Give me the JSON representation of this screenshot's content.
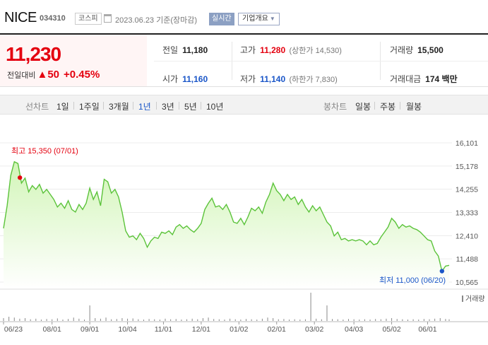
{
  "header": {
    "name": "NICE",
    "code": "034310",
    "market": "코스피",
    "date": "2023.06.23 기준(장마감)",
    "realtime_label": "실시간",
    "info_label": "기업개요"
  },
  "price": {
    "current": "11,230",
    "change_label": "전일대비",
    "change_arrow": "▲",
    "change_amount": "50",
    "change_pct": "+0.45%"
  },
  "stats": {
    "prev_close_label": "전일",
    "prev_close": "11,180",
    "high_label": "고가",
    "high": "11,280",
    "upper_limit": "(상한가 14,530)",
    "volume_label": "거래량",
    "volume": "15,500",
    "open_label": "시가",
    "open": "11,160",
    "low_label": "저가",
    "low": "11,140",
    "lower_limit": "(하한가 7,830)",
    "value_label": "거래대금",
    "value": "174 백만"
  },
  "periods": {
    "label": "선차트",
    "items": [
      "1일",
      "1주일",
      "3개월",
      "1년",
      "3년",
      "5년",
      "10년"
    ],
    "selected": "1년"
  },
  "candles": {
    "label": "봉차트",
    "items": [
      "일봉",
      "주봉",
      "월봉"
    ]
  },
  "colors": {
    "up": "#e4000f",
    "down": "#1a56c8",
    "line": "#5bc33a",
    "fill_top": "#d2f5b8",
    "fill_bottom": "#ffffff"
  },
  "chart_data": {
    "type": "area",
    "y_ticks": [
      "16,101",
      "15,178",
      "14,255",
      "13,333",
      "12,410",
      "11,488",
      "10,565"
    ],
    "ylim": [
      10565,
      16101
    ],
    "x_ticks": [
      "06/23",
      "08/01",
      "09/01",
      "10/04",
      "11/01",
      "12/01",
      "01/02",
      "02/01",
      "03/02",
      "04/03",
      "05/02",
      "06/01"
    ],
    "x_tick_index": [
      0,
      27,
      48,
      69,
      89,
      110,
      131,
      152,
      173,
      195,
      216,
      236
    ],
    "n_points": 249,
    "max_annotation": "최고 15,350 (07/01)",
    "min_annotation": "최저 11,000 (06/20)",
    "max_index": 5,
    "min_index": 244,
    "volume_label": "거래량",
    "series": [
      {
        "values": [
          [
            0,
            12700
          ],
          [
            2,
            13600
          ],
          [
            4,
            14800
          ],
          [
            6,
            15350
          ],
          [
            8,
            15280
          ],
          [
            10,
            14500
          ],
          [
            12,
            14700
          ],
          [
            14,
            14150
          ],
          [
            16,
            14400
          ],
          [
            18,
            14250
          ],
          [
            20,
            14450
          ],
          [
            22,
            14100
          ],
          [
            24,
            14250
          ],
          [
            26,
            14050
          ],
          [
            28,
            13850
          ],
          [
            30,
            13550
          ],
          [
            32,
            13700
          ],
          [
            34,
            13500
          ],
          [
            36,
            13800
          ],
          [
            38,
            13450
          ],
          [
            40,
            13350
          ],
          [
            42,
            13650
          ],
          [
            44,
            13450
          ],
          [
            46,
            13700
          ],
          [
            48,
            14300
          ],
          [
            50,
            13850
          ],
          [
            52,
            14150
          ],
          [
            54,
            13600
          ],
          [
            56,
            14650
          ],
          [
            58,
            14550
          ],
          [
            60,
            14100
          ],
          [
            62,
            14250
          ],
          [
            64,
            13950
          ],
          [
            66,
            13350
          ],
          [
            68,
            12600
          ],
          [
            70,
            12350
          ],
          [
            72,
            12400
          ],
          [
            74,
            12250
          ],
          [
            76,
            12500
          ],
          [
            78,
            12300
          ],
          [
            80,
            11950
          ],
          [
            82,
            12200
          ],
          [
            84,
            12350
          ],
          [
            86,
            12300
          ],
          [
            88,
            12550
          ],
          [
            90,
            12500
          ],
          [
            92,
            12600
          ],
          [
            94,
            12450
          ],
          [
            96,
            12750
          ],
          [
            98,
            12850
          ],
          [
            100,
            12700
          ],
          [
            102,
            12800
          ],
          [
            104,
            12650
          ],
          [
            106,
            12550
          ],
          [
            108,
            12700
          ],
          [
            110,
            12900
          ],
          [
            112,
            13450
          ],
          [
            114,
            13700
          ],
          [
            116,
            13900
          ],
          [
            118,
            13550
          ],
          [
            120,
            13600
          ],
          [
            122,
            13450
          ],
          [
            124,
            13650
          ],
          [
            126,
            13350
          ],
          [
            128,
            12950
          ],
          [
            130,
            12900
          ],
          [
            132,
            13100
          ],
          [
            134,
            12850
          ],
          [
            136,
            13150
          ],
          [
            138,
            13500
          ],
          [
            140,
            13400
          ],
          [
            142,
            13550
          ],
          [
            144,
            13300
          ],
          [
            146,
            13750
          ],
          [
            148,
            14050
          ],
          [
            150,
            14500
          ],
          [
            152,
            14200
          ],
          [
            154,
            14050
          ],
          [
            156,
            13800
          ],
          [
            158,
            14050
          ],
          [
            160,
            13850
          ],
          [
            162,
            13950
          ],
          [
            164,
            13650
          ],
          [
            166,
            13850
          ],
          [
            168,
            13550
          ],
          [
            170,
            13350
          ],
          [
            172,
            13600
          ],
          [
            174,
            13400
          ],
          [
            176,
            13550
          ],
          [
            178,
            13250
          ],
          [
            180,
            12950
          ],
          [
            182,
            12800
          ],
          [
            184,
            12400
          ],
          [
            186,
            12550
          ],
          [
            188,
            12250
          ],
          [
            190,
            12300
          ],
          [
            192,
            12200
          ],
          [
            194,
            12250
          ],
          [
            196,
            12200
          ],
          [
            198,
            12250
          ],
          [
            200,
            12200
          ],
          [
            202,
            12050
          ],
          [
            204,
            12200
          ],
          [
            206,
            12050
          ],
          [
            208,
            12100
          ],
          [
            210,
            12350
          ],
          [
            212,
            12550
          ],
          [
            214,
            12750
          ],
          [
            216,
            13100
          ],
          [
            218,
            12950
          ],
          [
            220,
            12700
          ],
          [
            222,
            12850
          ],
          [
            224,
            12750
          ],
          [
            226,
            12800
          ],
          [
            228,
            12700
          ],
          [
            230,
            12650
          ],
          [
            232,
            12550
          ],
          [
            234,
            12400
          ],
          [
            236,
            12250
          ],
          [
            238,
            12200
          ],
          [
            240,
            11800
          ],
          [
            242,
            11600
          ],
          [
            244,
            11000
          ],
          [
            246,
            11200
          ],
          [
            248,
            11230
          ]
        ]
      }
    ],
    "volume": [
      [
        0,
        0.1
      ],
      [
        3,
        0.15
      ],
      [
        6,
        0.12
      ],
      [
        9,
        0.08
      ],
      [
        12,
        0.1
      ],
      [
        15,
        0.06
      ],
      [
        18,
        0.08
      ],
      [
        21,
        0.05
      ],
      [
        24,
        0.07
      ],
      [
        27,
        0.06
      ],
      [
        30,
        0.09
      ],
      [
        33,
        0.05
      ],
      [
        36,
        0.07
      ],
      [
        39,
        0.12
      ],
      [
        42,
        0.08
      ],
      [
        45,
        0.05
      ],
      [
        48,
        0.55
      ],
      [
        51,
        0.1
      ],
      [
        54,
        0.08
      ],
      [
        57,
        0.12
      ],
      [
        60,
        0.06
      ],
      [
        63,
        0.07
      ],
      [
        66,
        0.1
      ],
      [
        69,
        0.08
      ],
      [
        72,
        0.09
      ],
      [
        75,
        0.06
      ],
      [
        78,
        0.05
      ],
      [
        81,
        0.07
      ],
      [
        84,
        0.06
      ],
      [
        87,
        0.05
      ],
      [
        90,
        0.08
      ],
      [
        93,
        0.06
      ],
      [
        96,
        0.07
      ],
      [
        99,
        0.05
      ],
      [
        102,
        0.06
      ],
      [
        105,
        0.08
      ],
      [
        108,
        0.06
      ],
      [
        111,
        0.1
      ],
      [
        114,
        0.12
      ],
      [
        117,
        0.07
      ],
      [
        120,
        0.06
      ],
      [
        123,
        0.05
      ],
      [
        126,
        0.08
      ],
      [
        129,
        0.06
      ],
      [
        132,
        0.05
      ],
      [
        135,
        0.07
      ],
      [
        138,
        0.06
      ],
      [
        141,
        0.05
      ],
      [
        144,
        0.08
      ],
      [
        147,
        0.12
      ],
      [
        150,
        0.1
      ],
      [
        153,
        0.06
      ],
      [
        156,
        0.07
      ],
      [
        159,
        0.05
      ],
      [
        162,
        0.06
      ],
      [
        165,
        0.05
      ],
      [
        168,
        0.06
      ],
      [
        171,
        1.0
      ],
      [
        174,
        0.08
      ],
      [
        177,
        0.06
      ],
      [
        180,
        0.55
      ],
      [
        183,
        0.07
      ],
      [
        186,
        0.06
      ],
      [
        189,
        0.05
      ],
      [
        192,
        0.07
      ],
      [
        195,
        0.06
      ],
      [
        198,
        0.05
      ],
      [
        201,
        0.06
      ],
      [
        204,
        0.05
      ],
      [
        207,
        0.07
      ],
      [
        210,
        0.06
      ],
      [
        213,
        0.08
      ],
      [
        216,
        0.1
      ],
      [
        219,
        0.07
      ],
      [
        222,
        0.06
      ],
      [
        225,
        0.05
      ],
      [
        228,
        0.06
      ],
      [
        231,
        0.05
      ],
      [
        234,
        0.07
      ],
      [
        237,
        0.06
      ],
      [
        240,
        0.08
      ],
      [
        243,
        0.1
      ],
      [
        246,
        0.07
      ],
      [
        248,
        0.06
      ]
    ]
  }
}
